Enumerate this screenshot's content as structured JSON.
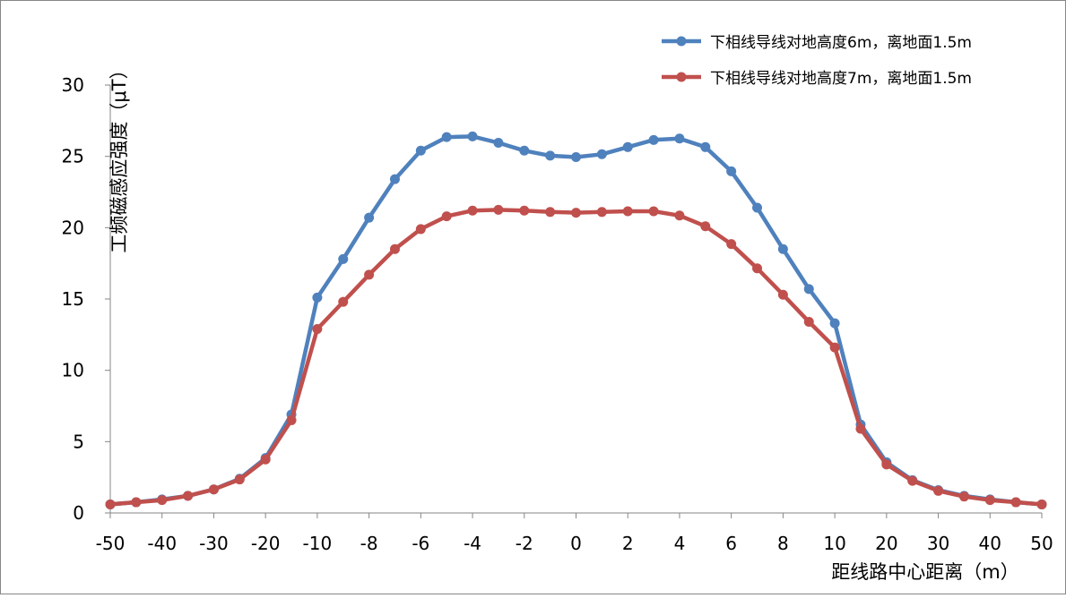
{
  "chart_data": {
    "type": "line",
    "title": "",
    "xlabel": "距线路中心距离（m）",
    "ylabel": "工频磁感应强度（μT）",
    "ylim": [
      0,
      30
    ],
    "yticks": [
      0,
      5,
      10,
      15,
      20,
      25,
      30
    ],
    "categories": [
      "-50",
      "-45",
      "-40",
      "-35",
      "-30",
      "-25",
      "-20",
      "-15",
      "-10",
      "-9",
      "-8",
      "-7",
      "-6",
      "-5",
      "-4",
      "-3",
      "-2",
      "-1",
      "0",
      "1",
      "2",
      "3",
      "4",
      "5",
      "6",
      "7",
      "8",
      "9",
      "10",
      "15",
      "20",
      "25",
      "30",
      "35",
      "40",
      "45",
      "50"
    ],
    "xtick_labels": [
      "-50",
      "-40",
      "-30",
      "-20",
      "-10",
      "-8",
      "-6",
      "-4",
      "-2",
      "0",
      "2",
      "4",
      "6",
      "8",
      "10",
      "20",
      "30",
      "40",
      "50"
    ],
    "xtick_indices": [
      0,
      2,
      4,
      6,
      8,
      10,
      12,
      14,
      16,
      18,
      20,
      22,
      24,
      26,
      28,
      30,
      32,
      34,
      36
    ],
    "grid": false,
    "legend_position": "top-right",
    "series": [
      {
        "name": "下相线导线对地高度6m，离地面1.5m",
        "color": "#4F81BD",
        "values": [
          0.6,
          0.75,
          0.95,
          1.2,
          1.65,
          2.4,
          3.85,
          6.9,
          15.1,
          17.8,
          20.7,
          23.4,
          25.4,
          26.35,
          26.4,
          25.95,
          25.4,
          25.05,
          24.95,
          25.15,
          25.65,
          26.15,
          26.25,
          25.65,
          23.95,
          21.4,
          18.5,
          15.7,
          13.3,
          6.2,
          3.55,
          2.3,
          1.6,
          1.2,
          0.95,
          0.75,
          0.6
        ]
      },
      {
        "name": "下相线导线对地高度7m，离地面1.5m",
        "color": "#C0504D",
        "values": [
          0.6,
          0.75,
          0.9,
          1.2,
          1.65,
          2.35,
          3.75,
          6.5,
          12.9,
          14.8,
          16.7,
          18.5,
          19.9,
          20.8,
          21.2,
          21.25,
          21.2,
          21.1,
          21.05,
          21.1,
          21.15,
          21.15,
          20.85,
          20.1,
          18.85,
          17.15,
          15.3,
          13.4,
          11.6,
          5.9,
          3.4,
          2.25,
          1.55,
          1.15,
          0.9,
          0.75,
          0.6
        ]
      }
    ]
  }
}
